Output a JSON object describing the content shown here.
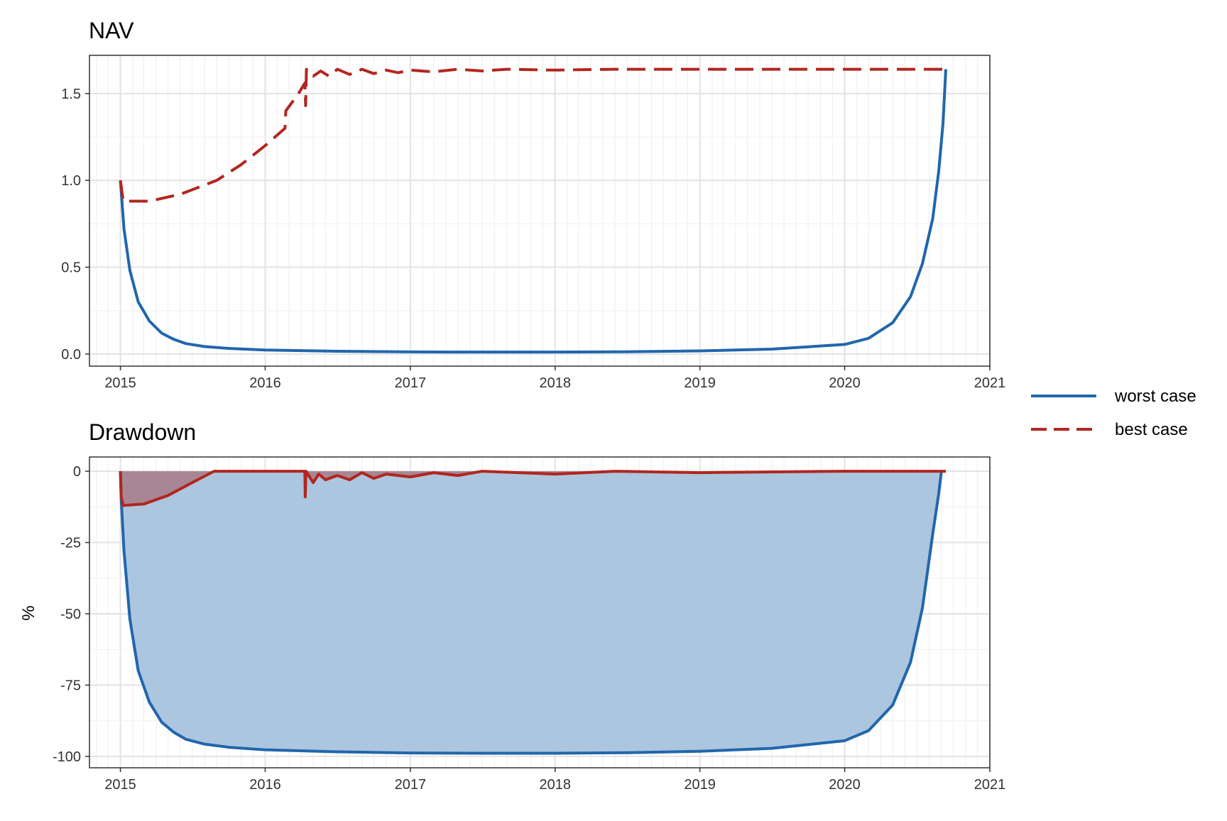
{
  "chart_data": [
    {
      "type": "line",
      "title": "NAV",
      "xlabel": "",
      "ylabel": "",
      "x_ticks": [
        "2015",
        "2016",
        "2017",
        "2018",
        "2019",
        "2020",
        "2021"
      ],
      "y_ticks": [
        "0.0",
        "0.5",
        "1.0",
        "1.5"
      ],
      "xlim": [
        "2014-10-15",
        "2021-01-01"
      ],
      "ylim": [
        -0.07,
        1.72
      ],
      "grid": true,
      "series": [
        {
          "name": "worst case",
          "color": "#2166ac",
          "dash": "solid",
          "points": [
            [
              "2015-01-01",
              1.0
            ],
            [
              "2015-01-10",
              0.72
            ],
            [
              "2015-01-25",
              0.48
            ],
            [
              "2015-02-15",
              0.3
            ],
            [
              "2015-03-15",
              0.19
            ],
            [
              "2015-04-15",
              0.12
            ],
            [
              "2015-05-15",
              0.085
            ],
            [
              "2015-06-15",
              0.06
            ],
            [
              "2015-08-01",
              0.043
            ],
            [
              "2015-10-01",
              0.032
            ],
            [
              "2016-01-01",
              0.023
            ],
            [
              "2016-07-01",
              0.016
            ],
            [
              "2017-01-01",
              0.012
            ],
            [
              "2017-07-01",
              0.011
            ],
            [
              "2018-01-01",
              0.011
            ],
            [
              "2018-07-01",
              0.013
            ],
            [
              "2019-01-01",
              0.018
            ],
            [
              "2019-07-01",
              0.028
            ],
            [
              "2020-01-01",
              0.055
            ],
            [
              "2020-03-01",
              0.09
            ],
            [
              "2020-05-01",
              0.18
            ],
            [
              "2020-06-15",
              0.33
            ],
            [
              "2020-07-15",
              0.52
            ],
            [
              "2020-08-10",
              0.78
            ],
            [
              "2020-08-25",
              1.05
            ],
            [
              "2020-09-05",
              1.33
            ],
            [
              "2020-09-12",
              1.64
            ]
          ]
        },
        {
          "name": "best case",
          "color": "#b2261f",
          "dash": "dashed",
          "points": [
            [
              "2015-01-01",
              1.0
            ],
            [
              "2015-01-08",
              0.88
            ],
            [
              "2015-03-15",
              0.88
            ],
            [
              "2015-06-01",
              0.92
            ],
            [
              "2015-09-01",
              1.0
            ],
            [
              "2015-11-01",
              1.09
            ],
            [
              "2016-01-01",
              1.2
            ],
            [
              "2016-02-20",
              1.3
            ],
            [
              "2016-02-22",
              1.4
            ],
            [
              "2016-03-25",
              1.5
            ],
            [
              "2016-04-10",
              1.56
            ],
            [
              "2016-04-12",
              1.43
            ],
            [
              "2016-04-14",
              1.64
            ],
            [
              "2016-05-01",
              1.6
            ],
            [
              "2016-05-20",
              1.63
            ],
            [
              "2016-06-10",
              1.6
            ],
            [
              "2016-07-01",
              1.64
            ],
            [
              "2016-08-01",
              1.61
            ],
            [
              "2016-09-01",
              1.64
            ],
            [
              "2016-10-01",
              1.615
            ],
            [
              "2016-11-01",
              1.635
            ],
            [
              "2016-12-01",
              1.62
            ],
            [
              "2017-01-01",
              1.635
            ],
            [
              "2017-03-01",
              1.625
            ],
            [
              "2017-05-01",
              1.64
            ],
            [
              "2017-07-01",
              1.63
            ],
            [
              "2017-09-01",
              1.64
            ],
            [
              "2018-01-01",
              1.635
            ],
            [
              "2018-06-01",
              1.64
            ],
            [
              "2019-01-01",
              1.64
            ],
            [
              "2020-01-01",
              1.64
            ],
            [
              "2020-09-12",
              1.64
            ]
          ]
        }
      ]
    },
    {
      "type": "area",
      "title": "Drawdown",
      "xlabel": "",
      "ylabel": "%",
      "x_ticks": [
        "2015",
        "2016",
        "2017",
        "2018",
        "2019",
        "2020",
        "2021"
      ],
      "y_ticks": [
        "0",
        "-25",
        "-50",
        "-75",
        "-100"
      ],
      "xlim": [
        "2014-10-15",
        "2021-01-01"
      ],
      "ylim": [
        -104,
        5
      ],
      "grid": true,
      "series": [
        {
          "name": "worst case",
          "color": "#2166ac",
          "fill": "#a6c3dc",
          "points": [
            [
              "2015-01-01",
              0
            ],
            [
              "2015-01-03",
              -10
            ],
            [
              "2015-01-10",
              -28
            ],
            [
              "2015-01-25",
              -52
            ],
            [
              "2015-02-15",
              -70
            ],
            [
              "2015-03-15",
              -81
            ],
            [
              "2015-04-15",
              -88
            ],
            [
              "2015-05-15",
              -91.5
            ],
            [
              "2015-06-15",
              -94
            ],
            [
              "2015-08-01",
              -95.7
            ],
            [
              "2015-10-01",
              -96.8
            ],
            [
              "2016-01-01",
              -97.7
            ],
            [
              "2016-07-01",
              -98.4
            ],
            [
              "2017-01-01",
              -98.8
            ],
            [
              "2017-07-01",
              -98.9
            ],
            [
              "2018-01-01",
              -98.9
            ],
            [
              "2018-07-01",
              -98.7
            ],
            [
              "2019-01-01",
              -98.2
            ],
            [
              "2019-07-01",
              -97.2
            ],
            [
              "2020-01-01",
              -94.5
            ],
            [
              "2020-03-01",
              -91
            ],
            [
              "2020-05-01",
              -82
            ],
            [
              "2020-06-15",
              -67
            ],
            [
              "2020-07-15",
              -48
            ],
            [
              "2020-08-10",
              -22
            ],
            [
              "2020-08-25",
              -8
            ],
            [
              "2020-09-01",
              0
            ]
          ]
        },
        {
          "name": "best case",
          "color": "#b2261f",
          "fill": "#a8838f",
          "points": [
            [
              "2015-01-01",
              0
            ],
            [
              "2015-01-03",
              -9
            ],
            [
              "2015-01-08",
              -12
            ],
            [
              "2015-03-01",
              -11.5
            ],
            [
              "2015-05-01",
              -8.5
            ],
            [
              "2015-07-01",
              -4
            ],
            [
              "2015-08-25",
              0
            ],
            [
              "2016-04-10",
              0
            ],
            [
              "2016-04-11",
              -9
            ],
            [
              "2016-04-13",
              0
            ],
            [
              "2016-05-01",
              -4
            ],
            [
              "2016-05-15",
              -1
            ],
            [
              "2016-06-01",
              -3
            ],
            [
              "2016-07-01",
              -1.5
            ],
            [
              "2016-08-01",
              -3
            ],
            [
              "2016-09-01",
              -0.5
            ],
            [
              "2016-10-01",
              -2.5
            ],
            [
              "2016-11-01",
              -1
            ],
            [
              "2017-01-01",
              -2
            ],
            [
              "2017-03-01",
              -0.5
            ],
            [
              "2017-05-01",
              -1.5
            ],
            [
              "2017-07-01",
              0
            ],
            [
              "2018-01-01",
              -1
            ],
            [
              "2018-06-01",
              0
            ],
            [
              "2019-01-01",
              -0.5
            ],
            [
              "2020-01-01",
              0
            ],
            [
              "2020-09-12",
              0
            ]
          ]
        }
      ]
    }
  ],
  "legend": {
    "position": "right",
    "items": [
      {
        "label": "worst case",
        "color": "#2166ac",
        "dash": "solid"
      },
      {
        "label": "best case",
        "color": "#b2261f",
        "dash": "dashed"
      }
    ]
  }
}
